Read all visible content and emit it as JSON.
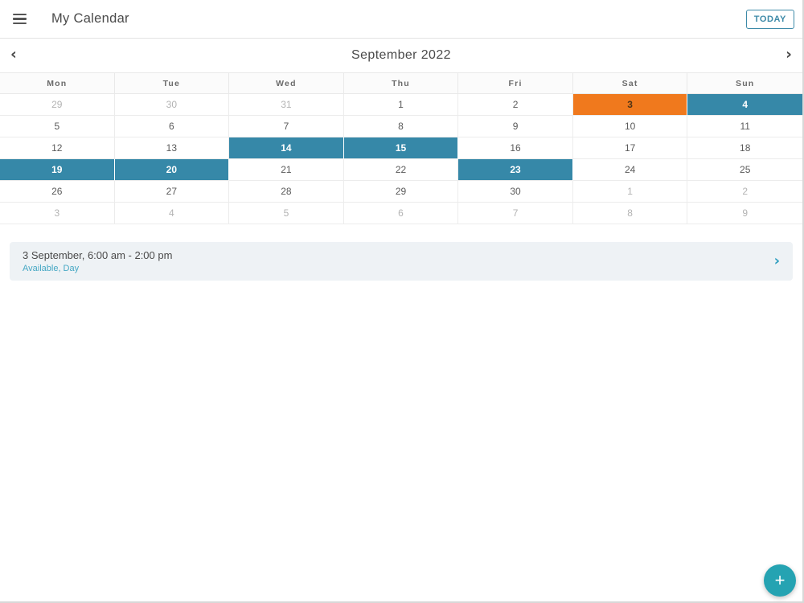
{
  "appbar": {
    "title": "My Calendar",
    "today_button_label": "TODAY",
    "menu_icon": "hamburger-icon"
  },
  "calendar": {
    "month_title": "September 2022",
    "prev_icon_glyph": "‹",
    "next_icon_glyph": "›",
    "weekdays": [
      "Mon",
      "Tue",
      "Wed",
      "Thu",
      "Fri",
      "Sat",
      "Sun"
    ],
    "weeks": [
      [
        {
          "day": "29",
          "type": "muted"
        },
        {
          "day": "30",
          "type": "muted"
        },
        {
          "day": "31",
          "type": "muted"
        },
        {
          "day": "1",
          "type": "normal"
        },
        {
          "day": "2",
          "type": "normal"
        },
        {
          "day": "3",
          "type": "orange"
        },
        {
          "day": "4",
          "type": "blue"
        }
      ],
      [
        {
          "day": "5",
          "type": "normal"
        },
        {
          "day": "6",
          "type": "normal"
        },
        {
          "day": "7",
          "type": "normal"
        },
        {
          "day": "8",
          "type": "normal"
        },
        {
          "day": "9",
          "type": "normal"
        },
        {
          "day": "10",
          "type": "normal"
        },
        {
          "day": "11",
          "type": "normal"
        }
      ],
      [
        {
          "day": "12",
          "type": "normal"
        },
        {
          "day": "13",
          "type": "normal"
        },
        {
          "day": "14",
          "type": "blue"
        },
        {
          "day": "15",
          "type": "blue"
        },
        {
          "day": "16",
          "type": "normal"
        },
        {
          "day": "17",
          "type": "normal"
        },
        {
          "day": "18",
          "type": "normal"
        }
      ],
      [
        {
          "day": "19",
          "type": "blue"
        },
        {
          "day": "20",
          "type": "blue"
        },
        {
          "day": "21",
          "type": "normal"
        },
        {
          "day": "22",
          "type": "normal"
        },
        {
          "day": "23",
          "type": "blue"
        },
        {
          "day": "24",
          "type": "normal"
        },
        {
          "day": "25",
          "type": "normal"
        }
      ],
      [
        {
          "day": "26",
          "type": "normal"
        },
        {
          "day": "27",
          "type": "normal"
        },
        {
          "day": "28",
          "type": "normal"
        },
        {
          "day": "29",
          "type": "normal"
        },
        {
          "day": "30",
          "type": "normal"
        },
        {
          "day": "1",
          "type": "muted"
        },
        {
          "day": "2",
          "type": "muted"
        }
      ],
      [
        {
          "day": "3",
          "type": "muted"
        },
        {
          "day": "4",
          "type": "muted"
        },
        {
          "day": "5",
          "type": "muted"
        },
        {
          "day": "6",
          "type": "muted"
        },
        {
          "day": "7",
          "type": "muted"
        },
        {
          "day": "8",
          "type": "muted"
        },
        {
          "day": "9",
          "type": "muted"
        }
      ]
    ]
  },
  "event": {
    "time": "3 September, 6:00 am - 2:00 pm",
    "status": "Available, Day",
    "chevron_glyph": "›"
  },
  "fab": {
    "label": "+"
  },
  "colors": {
    "selected_blue": "#3688a8",
    "today_orange": "#f0791d",
    "accent_teal": "#25a3b2",
    "link_teal": "#46a8c4"
  }
}
